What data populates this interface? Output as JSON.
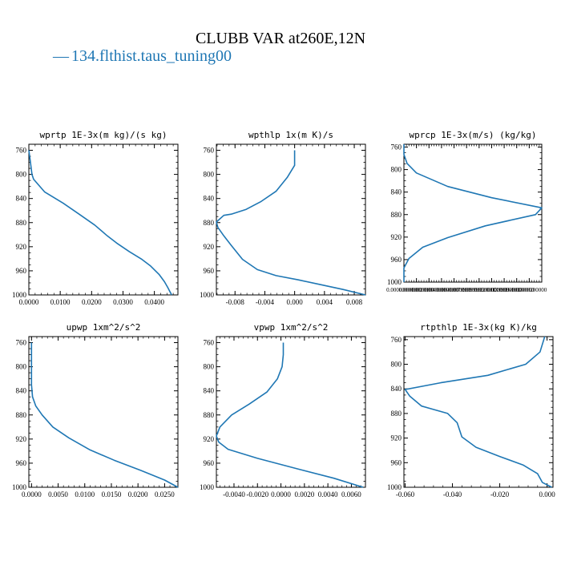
{
  "figure": {
    "title": "CLUBB VAR at260E,12N",
    "legend": [
      {
        "label": "134.flthist.taus_tuning00",
        "color": "#1f77b4",
        "marker": "—"
      }
    ]
  },
  "chart_data": [
    {
      "type": "line",
      "title": "wprtp  1E-3x(m kg)/(s kg)",
      "xlim": [
        0,
        0.0475
      ],
      "ylim": [
        750,
        1000
      ],
      "y_inverted": true,
      "xticks": [
        0,
        0.01,
        0.02,
        0.03,
        0.04
      ],
      "xtick_labels": [
        "0.0000",
        "0.0100",
        "0.0200",
        "0.0300",
        "0.0400"
      ],
      "yticks": [
        760,
        800,
        840,
        880,
        920,
        960,
        1000
      ],
      "series": [
        {
          "color": "#1f77b4",
          "x": [
            0,
            0.0005,
            0.001,
            0.0015,
            0.005,
            0.011,
            0.016,
            0.021,
            0.025,
            0.028,
            0.032,
            0.036,
            0.0388,
            0.0415,
            0.0432,
            0.0443,
            0.0448,
            0.0452,
            0.0455
          ],
          "y": [
            760,
            780,
            800,
            808,
            829,
            848,
            866,
            884,
            902,
            914,
            928,
            941,
            952,
            966,
            978,
            988,
            993,
            997,
            1000
          ]
        }
      ]
    },
    {
      "type": "line",
      "title": "wpthlp  1x(m K)/s",
      "xlim": [
        -0.0105,
        0.0095
      ],
      "ylim": [
        750,
        1000
      ],
      "y_inverted": true,
      "xticks": [
        -0.008,
        -0.004,
        0,
        0.004,
        0.008
      ],
      "xtick_labels": [
        "-0.008",
        "-0.004",
        "0.000",
        "0.004",
        "0.008"
      ],
      "yticks": [
        760,
        800,
        840,
        880,
        920,
        960,
        1000
      ],
      "series": [
        {
          "color": "#1f77b4",
          "x": [
            0,
            0,
            -0.001,
            -0.0025,
            -0.0045,
            -0.0065,
            -0.0085,
            -0.0095,
            -0.0105,
            -0.0103,
            -0.0095,
            -0.0085,
            -0.007,
            -0.005,
            -0.0025,
            0.0005,
            0.0035,
            0.0065,
            0.0095
          ],
          "y": [
            760,
            785,
            805,
            828,
            845,
            858,
            866,
            868,
            879,
            888,
            902,
            918,
            941,
            958,
            968,
            975,
            983,
            991,
            1000
          ]
        }
      ]
    },
    {
      "type": "line",
      "title": "wprcp  1E-3x(m/s) (kg/kg)",
      "xlim": [
        0,
        2.2e-06
      ],
      "ylim": [
        755,
        1000
      ],
      "y_inverted": true,
      "xticks": [
        0,
        2e-07,
        4e-07,
        6e-07,
        8e-07,
        1e-06,
        1.2e-06,
        1.4e-06,
        1.6e-06,
        1.8e-06,
        2e-06
      ],
      "xtick_labels": [
        "0.00000000000",
        "0.00000020000",
        "0.00000040000",
        "0.00000060000",
        "0.00000079999",
        "0.00000099999",
        "0.00000120000",
        "0.00000139999",
        "0.00000160000",
        "0.00000180000",
        "0.00000200000"
      ],
      "yticks": [
        760,
        800,
        840,
        880,
        920,
        960,
        1000
      ],
      "series": [
        {
          "color": "#1f77b4",
          "x": [
            0,
            0,
            5e-08,
            2e-07,
            7e-07,
            1.4e-06,
            2.2e-06,
            2.1e-06,
            1.3e-06,
            7e-07,
            3e-07,
            8e-08,
            0,
            0
          ],
          "y": [
            755,
            773,
            789,
            806,
            830,
            850,
            868,
            880,
            900,
            921,
            938,
            958,
            975,
            1000
          ]
        }
      ]
    },
    {
      "type": "line",
      "title": "upwp  1xm^2/s^2",
      "xlim": [
        -0.0005,
        0.0275
      ],
      "ylim": [
        750,
        1000
      ],
      "y_inverted": true,
      "xticks": [
        0,
        0.005,
        0.01,
        0.015,
        0.02,
        0.025
      ],
      "xtick_labels": [
        "0.0000",
        "0.0050",
        "0.0100",
        "0.0150",
        "0.0200",
        "0.0250"
      ],
      "yticks": [
        760,
        800,
        840,
        880,
        920,
        960,
        1000
      ],
      "series": [
        {
          "color": "#1f77b4",
          "x": [
            0,
            0,
            0,
            0.0002,
            0.0008,
            0.002,
            0.004,
            0.007,
            0.011,
            0.0155,
            0.0205,
            0.025,
            0.0275
          ],
          "y": [
            760,
            800,
            830,
            850,
            865,
            880,
            900,
            918,
            938,
            955,
            972,
            988,
            1000
          ]
        }
      ]
    },
    {
      "type": "line",
      "title": "vpwp  1xm^2/s^2",
      "xlim": [
        -0.0055,
        0.0072
      ],
      "ylim": [
        750,
        1000
      ],
      "y_inverted": true,
      "xticks": [
        -0.004,
        -0.002,
        0,
        0.002,
        0.004,
        0.006
      ],
      "xtick_labels": [
        "-0.0040",
        "-0.0020",
        "0.0000",
        "0.0020",
        "0.0040",
        "0.0060"
      ],
      "yticks": [
        760,
        800,
        840,
        880,
        920,
        960,
        1000
      ],
      "series": [
        {
          "color": "#1f77b4",
          "x": [
            0.0002,
            0.0002,
            0.0001,
            -0.0003,
            -0.0012,
            -0.0027,
            -0.0042,
            -0.0052,
            -0.0055,
            -0.0053,
            -0.0045,
            -0.002,
            0.0015,
            0.0045,
            0.007
          ],
          "y": [
            760,
            780,
            800,
            820,
            842,
            862,
            880,
            900,
            915,
            925,
            937,
            952,
            970,
            985,
            1000
          ]
        }
      ]
    },
    {
      "type": "line",
      "title": "rtpthlp  1E-3x(kg K)/kg",
      "xlim": [
        -0.0605,
        0.0025
      ],
      "ylim": [
        755,
        1000
      ],
      "y_inverted": true,
      "xticks": [
        -0.06,
        -0.04,
        -0.02,
        0
      ],
      "xtick_labels": [
        "-0.060",
        "-0.040",
        "-0.020",
        "0.000"
      ],
      "yticks": [
        760,
        800,
        840,
        880,
        920,
        960,
        1000
      ],
      "series": [
        {
          "color": "#1f77b4",
          "x": [
            -0.001,
            -0.003,
            -0.009,
            -0.025,
            -0.045,
            -0.06,
            -0.058,
            -0.053,
            -0.042,
            -0.038,
            -0.036,
            -0.03,
            -0.02,
            -0.01,
            -0.004,
            -0.002,
            0.002
          ],
          "y": [
            755,
            780,
            800,
            818,
            830,
            841,
            852,
            868,
            880,
            895,
            918,
            935,
            950,
            964,
            978,
            992,
            1000
          ]
        }
      ]
    }
  ]
}
